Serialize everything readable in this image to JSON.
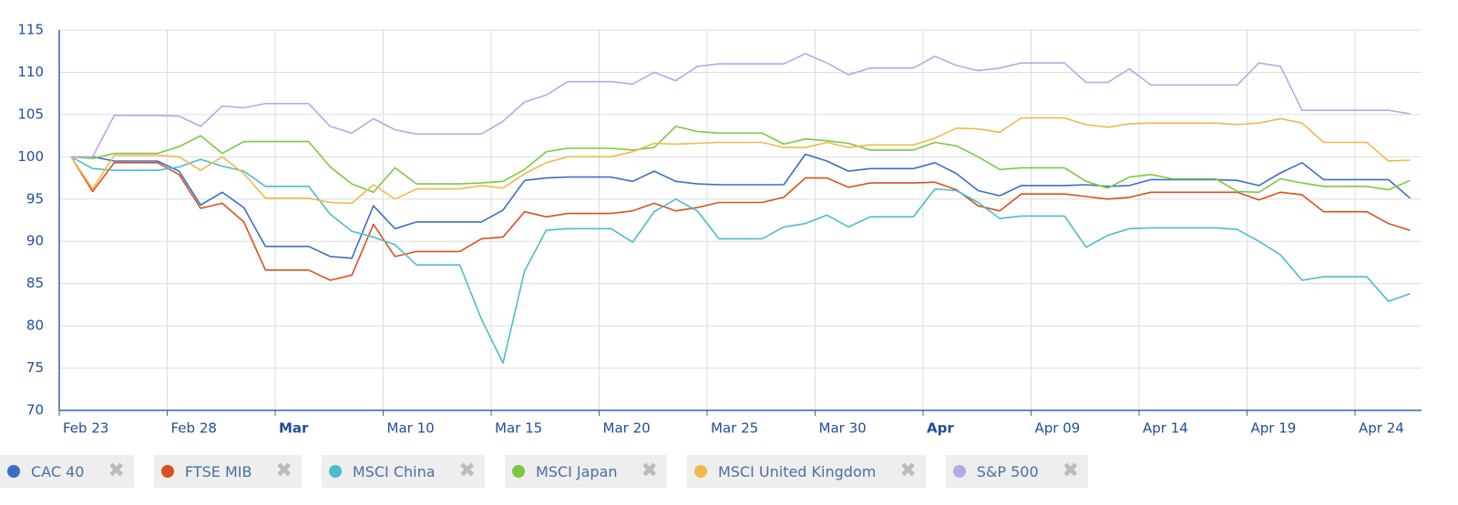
{
  "chart_data": {
    "type": "line",
    "x": [
      "Feb 23",
      "Feb 24",
      "Feb 25",
      "Feb 26",
      "Feb 27",
      "Feb 28",
      "Mar 1",
      "Mar 2",
      "Mar 3",
      "Mar 4",
      "Mar 5",
      "Mar 6",
      "Mar 7",
      "Mar 8",
      "Mar 9",
      "Mar 10",
      "Mar 11",
      "Mar 12",
      "Mar 13",
      "Mar 14",
      "Mar 15",
      "Mar 16",
      "Mar 17",
      "Mar 18",
      "Mar 19",
      "Mar 20",
      "Mar 21",
      "Mar 22",
      "Mar 23",
      "Mar 24",
      "Mar 25",
      "Mar 26",
      "Mar 27",
      "Mar 28",
      "Mar 29",
      "Mar 30",
      "Mar 31",
      "Apr 1",
      "Apr 2",
      "Apr 3",
      "Apr 4",
      "Apr 5",
      "Apr 6",
      "Apr 7",
      "Apr 8",
      "Apr 9",
      "Apr 10",
      "Apr 11",
      "Apr 12",
      "Apr 13",
      "Apr 14",
      "Apr 15",
      "Apr 16",
      "Apr 17",
      "Apr 18",
      "Apr 19",
      "Apr 20",
      "Apr 21",
      "Apr 22",
      "Apr 23",
      "Apr 24",
      "Apr 25",
      "Apr 26"
    ],
    "xticks": [
      "Feb 23",
      "Feb 28",
      {
        "value": "Mar 5",
        "label": "Mar"
      },
      "Mar 10",
      "Mar 15",
      "Mar 20",
      "Mar 25",
      "Mar 30",
      {
        "value": "Apr 4",
        "label": "Apr"
      },
      {
        "value": "Apr 9",
        "label": "Apr 09"
      },
      "Apr 14",
      "Apr 19",
      "Apr 24"
    ],
    "ylim": [
      70,
      115
    ],
    "yticks": [
      70,
      75,
      80,
      85,
      90,
      95,
      100,
      105,
      110,
      115
    ],
    "grid": true,
    "series": [
      {
        "name": "CAC 40",
        "color": "#3a6fc4",
        "values": [
          100,
          100,
          99.5,
          99.5,
          99.5,
          98.3,
          94.3,
          95.8,
          94,
          89.4,
          89.4,
          89.4,
          88.2,
          88,
          94.2,
          91.5,
          92.3,
          92.3,
          92.3,
          92.3,
          93.7,
          97.2,
          97.5,
          97.6,
          97.6,
          97.6,
          97.1,
          98.3,
          97.1,
          96.8,
          96.7,
          96.7,
          96.7,
          96.7,
          100.3,
          99.5,
          98.3,
          98.6,
          98.6,
          98.6,
          99.3,
          98,
          96,
          95.4,
          96.6,
          96.6,
          96.6,
          96.7,
          96.5,
          96.6,
          97.3,
          97.3,
          97.3,
          97.3,
          97.2,
          96.6,
          98.1,
          99.3,
          97.3,
          97.3,
          97.3,
          97.3,
          95.1
        ]
      },
      {
        "name": "FTSE MIB",
        "color": "#d9501e",
        "values": [
          100,
          95.9,
          99.3,
          99.3,
          99.3,
          97.9,
          93.9,
          94.5,
          92.3,
          86.6,
          86.6,
          86.6,
          85.4,
          86,
          92,
          88.2,
          88.8,
          88.8,
          88.8,
          90.3,
          90.5,
          93.5,
          92.9,
          93.3,
          93.3,
          93.3,
          93.6,
          94.5,
          93.6,
          94,
          94.6,
          94.6,
          94.6,
          95.2,
          97.5,
          97.5,
          96.4,
          96.9,
          96.9,
          96.9,
          97,
          96.1,
          94.2,
          93.6,
          95.6,
          95.6,
          95.6,
          95.3,
          95,
          95.2,
          95.8,
          95.8,
          95.8,
          95.8,
          95.8,
          94.9,
          95.8,
          95.5,
          93.5,
          93.5,
          93.5,
          92.1,
          91.3
        ]
      },
      {
        "name": "MSCI China",
        "color": "#4bbccc",
        "values": [
          100,
          98.6,
          98.4,
          98.4,
          98.4,
          98.8,
          99.7,
          98.9,
          98.3,
          96.5,
          96.5,
          96.5,
          93.2,
          91.2,
          90.5,
          89.6,
          87.2,
          87.2,
          87.2,
          80.8,
          75.6,
          86.5,
          91.3,
          91.5,
          91.5,
          91.5,
          89.9,
          93.5,
          95,
          93.6,
          90.3,
          90.3,
          90.3,
          91.7,
          92.1,
          93.1,
          91.7,
          92.9,
          92.9,
          92.9,
          96.2,
          96,
          94.6,
          92.7,
          93,
          93,
          93,
          89.3,
          90.7,
          91.5,
          91.6,
          91.6,
          91.6,
          91.6,
          91.4,
          90,
          88.4,
          85.4,
          85.8,
          85.8,
          85.8,
          82.9,
          83.8
        ]
      },
      {
        "name": "MSCI Japan",
        "color": "#7dc843",
        "values": [
          100,
          99.8,
          100.4,
          100.4,
          100.4,
          101.2,
          102.5,
          100.4,
          101.8,
          101.8,
          101.8,
          101.8,
          98.8,
          96.8,
          95.8,
          98.7,
          96.8,
          96.8,
          96.8,
          96.9,
          97.1,
          98.5,
          100.6,
          101,
          101,
          101,
          100.8,
          101.1,
          103.6,
          103,
          102.8,
          102.8,
          102.8,
          101.5,
          102.1,
          101.9,
          101.6,
          100.8,
          100.8,
          100.8,
          101.7,
          101.3,
          100,
          98.5,
          98.7,
          98.7,
          98.7,
          97.1,
          96.3,
          97.6,
          97.9,
          97.4,
          97.4,
          97.4,
          95.9,
          95.8,
          97.4,
          96.9,
          96.5,
          96.5,
          96.5,
          96.1,
          97.2
        ]
      },
      {
        "name": "MSCI United Kingdom",
        "color": "#f0b84c",
        "values": [
          100,
          96.2,
          100.2,
          100.2,
          100.2,
          100,
          98.4,
          100,
          98,
          95.1,
          95.1,
          95.1,
          94.6,
          94.5,
          96.7,
          95,
          96.2,
          96.2,
          96.2,
          96.6,
          96.3,
          98,
          99.3,
          100,
          100,
          100,
          100.6,
          101.6,
          101.5,
          101.6,
          101.7,
          101.7,
          101.7,
          101.1,
          101.1,
          101.7,
          101.1,
          101.4,
          101.4,
          101.4,
          102.2,
          103.4,
          103.3,
          102.9,
          104.6,
          104.6,
          104.6,
          103.8,
          103.5,
          103.9,
          104,
          104,
          104,
          104,
          103.8,
          104,
          104.5,
          104,
          101.7,
          101.7,
          101.7,
          99.5,
          99.6
        ]
      },
      {
        "name": "S&P 500",
        "color": "#b9a6e8",
        "values": [
          100,
          100,
          104.9,
          104.9,
          104.9,
          104.8,
          103.6,
          106,
          105.8,
          106.3,
          106.3,
          106.3,
          103.6,
          102.8,
          104.5,
          103.2,
          102.7,
          102.7,
          102.7,
          102.7,
          104.2,
          106.5,
          107.3,
          108.9,
          108.9,
          108.9,
          108.6,
          110,
          109,
          110.7,
          111,
          111,
          111,
          111,
          112.2,
          111.1,
          109.7,
          110.5,
          110.5,
          110.5,
          111.9,
          110.8,
          110.2,
          110.5,
          111.1,
          111.1,
          111.1,
          108.8,
          108.8,
          110.4,
          108.5,
          108.5,
          108.5,
          108.5,
          108.5,
          111.1,
          110.7,
          105.5,
          105.5,
          105.5,
          105.5,
          105.5,
          105.1
        ]
      }
    ]
  }
}
